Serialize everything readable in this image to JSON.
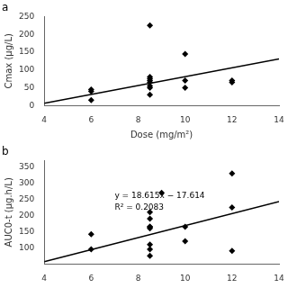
{
  "chart_data": [
    {
      "type": "scatter",
      "title": "a",
      "xlabel": "Dose (mg/m²)",
      "ylabel": "Cmax (μg/L)",
      "series": [
        {
          "type": "scatter",
          "marker": "diamond",
          "color": "black",
          "x": [
            6,
            6,
            6,
            8.5,
            8.5,
            8.5,
            8.5,
            8.5,
            8.5,
            8.5,
            8.5,
            10,
            10,
            10,
            12,
            12
          ],
          "values": [
            15,
            40,
            45,
            30,
            50,
            55,
            65,
            70,
            75,
            80,
            225,
            50,
            70,
            145,
            65,
            70
          ]
        },
        {
          "type": "line",
          "color": "black",
          "x": [
            4,
            14
          ],
          "values": [
            6,
            131
          ]
        }
      ],
      "xlim": [
        4,
        14
      ],
      "xticks": [
        4,
        6,
        8,
        10,
        12,
        14
      ],
      "ylim": [
        0,
        250
      ],
      "yticks": [
        0,
        50,
        100,
        150,
        200,
        250
      ],
      "grid": false
    },
    {
      "type": "scatter",
      "title": "b",
      "ylabel": "AUC0-t (μg.h/L)",
      "annotations": [
        "y = 18.615x − 17.614",
        "R² = 0.2083"
      ],
      "series": [
        {
          "type": "scatter",
          "marker": "diamond",
          "color": "black",
          "x": [
            6,
            6,
            8.5,
            8.5,
            8.5,
            8.5,
            8.5,
            8.5,
            8.5,
            8.5,
            9.0,
            10,
            10,
            12,
            12,
            12
          ],
          "values": [
            95,
            142,
            75,
            95,
            110,
            160,
            165,
            165,
            190,
            210,
            270,
            120,
            165,
            90,
            225,
            330
          ]
        },
        {
          "type": "line",
          "color": "black",
          "x": [
            4,
            14
          ],
          "values": [
            56.846,
            242.996
          ]
        }
      ],
      "xlim": [
        4,
        14
      ],
      "xticks": [
        4,
        6,
        8,
        10,
        12,
        14
      ],
      "ylim": [
        50,
        370
      ],
      "yticks": [
        100,
        150,
        200,
        250,
        300,
        350
      ],
      "grid": false
    }
  ]
}
